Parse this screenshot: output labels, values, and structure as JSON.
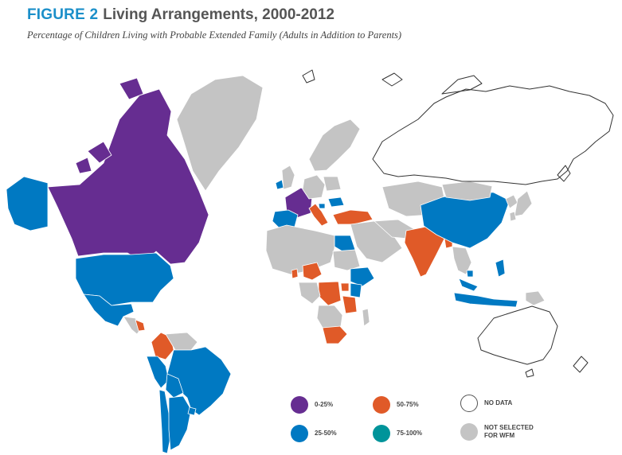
{
  "figure": {
    "label": "FIGURE 2",
    "title": "Living Arrangements, 2000-2012",
    "subtitle": "Percentage of Children Living with Probable Extended Family (Adults in Addition to Parents)"
  },
  "colors": {
    "c0_25": "#662d91",
    "c25_50": "#0079c2",
    "c50_75": "#e05a28",
    "c75_100": "#00949a",
    "no_data": "#ffffff",
    "not_selected": "#c4c4c4",
    "border": "#ffffff",
    "outline": "#333333"
  },
  "legend": [
    {
      "key": "0-25",
      "label": "0-25%",
      "color": "#662d91"
    },
    {
      "key": "50-75",
      "label": "50-75%",
      "color": "#e05a28"
    },
    {
      "key": "no-data",
      "label": "NO DATA",
      "color": "#ffffff"
    },
    {
      "key": "25-50",
      "label": "25-50%",
      "color": "#0079c2"
    },
    {
      "key": "75-100",
      "label": "75-100%",
      "color": "#00949a"
    },
    {
      "key": "not-selected",
      "label": "NOT SELECTED\nFOR WFM",
      "color": "#c4c4c4"
    }
  ],
  "regions": [
    {
      "name": "Canada",
      "category": "0-25"
    },
    {
      "name": "Greenland",
      "category": "not-selected"
    },
    {
      "name": "Alaska (United States)",
      "category": "25-50"
    },
    {
      "name": "United States",
      "category": "25-50"
    },
    {
      "name": "Mexico",
      "category": "25-50"
    },
    {
      "name": "Central America",
      "category": "not-selected"
    },
    {
      "name": "Nicaragua",
      "category": "50-75"
    },
    {
      "name": "Colombia",
      "category": "50-75"
    },
    {
      "name": "Venezuela",
      "category": "not-selected"
    },
    {
      "name": "Brazil",
      "category": "25-50"
    },
    {
      "name": "Peru",
      "category": "25-50"
    },
    {
      "name": "Bolivia",
      "category": "25-50"
    },
    {
      "name": "Chile",
      "category": "25-50"
    },
    {
      "name": "Argentina",
      "category": "25-50"
    },
    {
      "name": "Uruguay",
      "category": "25-50"
    },
    {
      "name": "Ireland",
      "category": "25-50"
    },
    {
      "name": "United Kingdom",
      "category": "not-selected"
    },
    {
      "name": "France",
      "category": "0-25"
    },
    {
      "name": "Spain",
      "category": "25-50"
    },
    {
      "name": "Italy",
      "category": "50-75"
    },
    {
      "name": "Germany",
      "category": "not-selected"
    },
    {
      "name": "Poland",
      "category": "not-selected"
    },
    {
      "name": "Scandinavia",
      "category": "not-selected"
    },
    {
      "name": "Russia",
      "category": "no-data"
    },
    {
      "name": "Hungary",
      "category": "25-50"
    },
    {
      "name": "Slovenia",
      "category": "25-50"
    },
    {
      "name": "Turkey",
      "category": "50-75"
    },
    {
      "name": "Egypt",
      "category": "25-50"
    },
    {
      "name": "North Africa",
      "category": "not-selected"
    },
    {
      "name": "Nigeria",
      "category": "50-75"
    },
    {
      "name": "Ghana",
      "category": "50-75"
    },
    {
      "name": "Ethiopia",
      "category": "25-50"
    },
    {
      "name": "Uganda",
      "category": "50-75"
    },
    {
      "name": "Kenya",
      "category": "25-50"
    },
    {
      "name": "DR Congo",
      "category": "50-75"
    },
    {
      "name": "Tanzania",
      "category": "50-75"
    },
    {
      "name": "South Africa",
      "category": "50-75"
    },
    {
      "name": "Southern Africa",
      "category": "not-selected"
    },
    {
      "name": "Middle East",
      "category": "not-selected"
    },
    {
      "name": "Central Asia",
      "category": "not-selected"
    },
    {
      "name": "India",
      "category": "50-75"
    },
    {
      "name": "Bangladesh",
      "category": "50-75"
    },
    {
      "name": "China",
      "category": "25-50"
    },
    {
      "name": "Mongolia",
      "category": "not-selected"
    },
    {
      "name": "Southeast Asia",
      "category": "not-selected"
    },
    {
      "name": "Cambodia",
      "category": "25-50"
    },
    {
      "name": "Malaysia",
      "category": "25-50"
    },
    {
      "name": "Indonesia",
      "category": "25-50"
    },
    {
      "name": "Philippines",
      "category": "25-50"
    },
    {
      "name": "Japan",
      "category": "not-selected"
    },
    {
      "name": "South Korea",
      "category": "not-selected"
    },
    {
      "name": "Australia",
      "category": "no-data"
    },
    {
      "name": "New Zealand",
      "category": "no-data"
    },
    {
      "name": "Papua New Guinea",
      "category": "not-selected"
    }
  ]
}
